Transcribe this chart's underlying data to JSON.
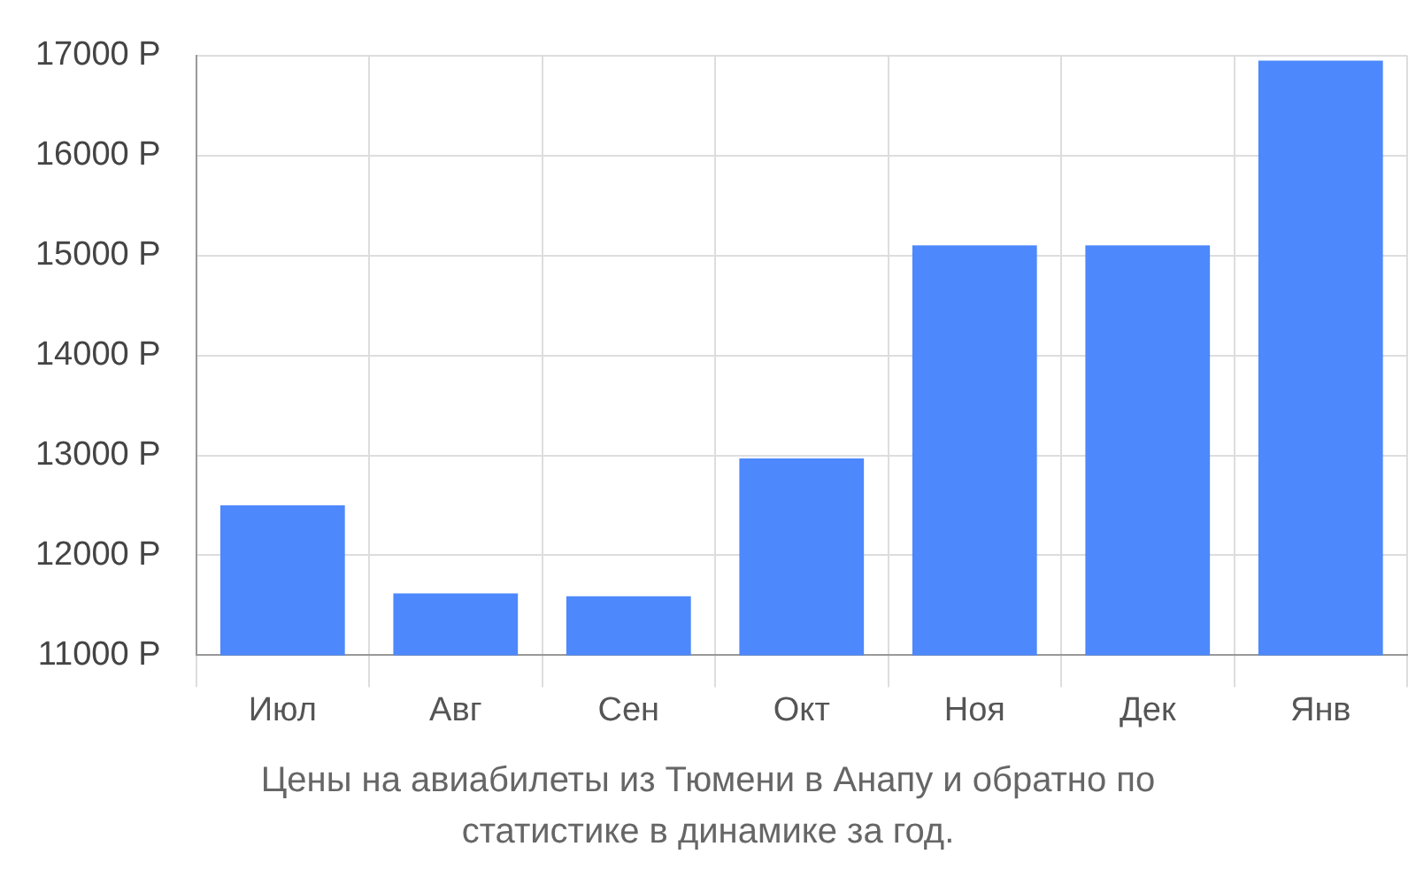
{
  "chart_data": {
    "type": "bar",
    "title": "Цены на авиабилеты из Тюмени в Анапу и обратно по статистике в динамике за год.",
    "categories": [
      "Июл",
      "Авг",
      "Сен",
      "Окт",
      "Ноя",
      "Дек",
      "Янв"
    ],
    "values": [
      12500,
      11620,
      11590,
      12970,
      15100,
      15100,
      16950
    ],
    "color": "#4d88fc",
    "ylim": [
      11000,
      17000
    ],
    "yticks": [
      {
        "value": 11000,
        "label": "11000 Р"
      },
      {
        "value": 12000,
        "label": "12000 Р"
      },
      {
        "value": 13000,
        "label": "13000 Р"
      },
      {
        "value": 14000,
        "label": "14000 Р"
      },
      {
        "value": 15000,
        "label": "15000 Р"
      },
      {
        "value": 16000,
        "label": "16000 Р"
      },
      {
        "value": 17000,
        "label": "17000 Р"
      }
    ],
    "grid": true
  }
}
